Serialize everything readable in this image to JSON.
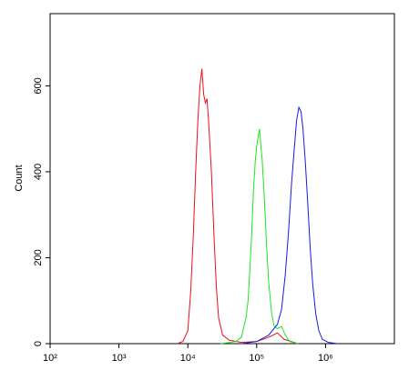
{
  "chart_data": {
    "type": "line",
    "y_label": "Count",
    "xscale": "log",
    "xlim": [
      100,
      10000000
    ],
    "ylim": [
      0,
      768
    ],
    "xticks": [
      {
        "value": 100,
        "label": "10²"
      },
      {
        "value": 1000,
        "label": "10³"
      },
      {
        "value": 10000,
        "label": "10⁴"
      },
      {
        "value": 100000,
        "label": "10⁵"
      },
      {
        "value": 1000000,
        "label": "10⁶"
      }
    ],
    "yticks": [
      0,
      200,
      400,
      600
    ],
    "series": [
      {
        "color": "#e8121b",
        "x": [
          7000,
          8500,
          10000,
          11000,
          12000,
          13000,
          14000,
          15000,
          16000,
          17000,
          18000,
          19000,
          20000,
          22000,
          24000,
          26000,
          28000,
          32000,
          40000,
          60000,
          100000,
          150000,
          200000,
          250000,
          400000
        ],
        "values": [
          0,
          5,
          30,
          120,
          250,
          400,
          520,
          600,
          640,
          580,
          560,
          570,
          520,
          400,
          250,
          130,
          60,
          20,
          8,
          3,
          5,
          15,
          25,
          10,
          0
        ]
      },
      {
        "color": "#1ee61e",
        "x": [
          30000,
          50000,
          60000,
          70000,
          75000,
          80000,
          85000,
          90000,
          95000,
          100000,
          105000,
          110000,
          115000,
          120000,
          130000,
          140000,
          150000,
          165000,
          180000,
          200000,
          230000,
          260000,
          300000,
          400000
        ],
        "values": [
          0,
          5,
          15,
          60,
          100,
          180,
          260,
          360,
          420,
          460,
          480,
          500,
          460,
          430,
          330,
          220,
          140,
          70,
          40,
          35,
          40,
          20,
          5,
          0
        ]
      },
      {
        "color": "#1a1ae0",
        "x": [
          60000,
          100000,
          150000,
          200000,
          230000,
          260000,
          290000,
          320000,
          350000,
          380000,
          410000,
          440000,
          470000,
          510000,
          550000,
          600000,
          650000,
          720000,
          800000,
          900000,
          1100000,
          1500000
        ],
        "values": [
          0,
          5,
          20,
          45,
          80,
          160,
          260,
          370,
          450,
          520,
          550,
          540,
          500,
          420,
          330,
          220,
          140,
          70,
          30,
          10,
          3,
          0
        ]
      }
    ]
  }
}
